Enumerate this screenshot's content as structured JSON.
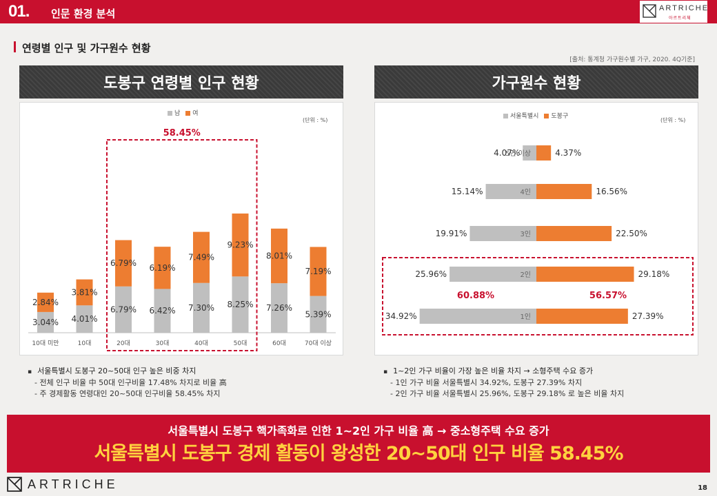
{
  "header": {
    "section_number": "01.",
    "section_title": "인문 환경 분석",
    "brand_name": "ARTRICHE",
    "brand_sub": "아르트리체"
  },
  "subheading": "연령별 인구 및 가구원수 현황",
  "source": "[출처: 통계청 가구원수별 가구, 2020. 4Q기준]",
  "left_panel": {
    "title": "도봉구 연령별 인구 현황",
    "unit": "(단위 : %)",
    "highlight_total": "58.45%",
    "bullet_lead": "서울특별시 도봉구  20~50대 인구 높은 비중 차지",
    "bullet_sub1": "- 전체 인구 비율 中 50대 인구비율 17.48% 차지로 비율 高",
    "bullet_sub2": "- 주 경제활동 연령대인 20~50대 인구비율 58.45% 차지"
  },
  "right_panel": {
    "title": "가구원수 현황",
    "unit": "(단위 : %)",
    "highlight_left": "60.88%",
    "highlight_right": "56.57%",
    "bullet_lead": "1~2인 가구 비율이 가장 높은 비율 차지 → 소형주택 수요 증가",
    "bullet_sub1": "- 1인 가구 비율 서울특별시 34.92%, 도봉구 27.39% 차지",
    "bullet_sub2": "- 2인 가구 비율 서울특별시 25.96%, 도봉구 29.18% 로 높은 비율 차지"
  },
  "banner": {
    "line1": "서울특별시 도봉구 핵가족화로 인한 1~2인 가구 비율 高 →  중소형주택 수요 증가",
    "line2": "서울특별시 도봉구 경제 활동이 왕성한 20~50대 인구 비율 58.45%"
  },
  "footer": {
    "brand_name": "ARTRICHE",
    "page_number": "18"
  },
  "colors": {
    "accent_red": "#c8102e",
    "male_gray": "#bfbfbf",
    "female_orange": "#ed7d31",
    "banner_yellow": "#ffd23f"
  },
  "chart_data": [
    {
      "type": "bar",
      "stacked": true,
      "title": "도봉구 연령별 인구 현황",
      "categories": [
        "10대 미만",
        "10대",
        "20대",
        "30대",
        "40대",
        "50대",
        "60대",
        "70대 이상"
      ],
      "series": [
        {
          "name": "남",
          "color": "#bfbfbf",
          "values": [
            3.04,
            4.01,
            6.79,
            6.42,
            7.3,
            8.25,
            7.26,
            5.39
          ]
        },
        {
          "name": "여",
          "color": "#ed7d31",
          "values": [
            2.84,
            3.81,
            6.79,
            6.19,
            7.49,
            9.23,
            8.01,
            7.19
          ]
        }
      ],
      "labels_male": [
        "3.04%",
        "4.01%",
        "6.79%",
        "6.42%",
        "7.30%",
        "8.25%",
        "7.26%",
        "5.39%"
      ],
      "labels_female": [
        "2.84%",
        "3.81%",
        "6.79%",
        "6.19%",
        "7.49%",
        "9.23%",
        "8.01%",
        "7.19%"
      ],
      "highlight_range": [
        "20대",
        "50대"
      ],
      "legend": "top-center",
      "grid": false
    },
    {
      "type": "bar",
      "orientation": "horizontal-diverging",
      "title": "가구원수 현황",
      "categories": [
        "5인 이상",
        "4인",
        "3인",
        "2인",
        "1인"
      ],
      "series": [
        {
          "name": "서울특별시",
          "color": "#bfbfbf",
          "values": [
            4.07,
            15.14,
            19.91,
            25.96,
            34.92
          ]
        },
        {
          "name": "도봉구",
          "color": "#ed7d31",
          "values": [
            4.37,
            16.56,
            22.5,
            29.18,
            27.39
          ]
        }
      ],
      "labels_seoul": [
        "4.07%",
        "15.14%",
        "19.91%",
        "25.96%",
        "34.92%"
      ],
      "labels_dobong": [
        "4.37%",
        "16.56%",
        "22.50%",
        "29.18%",
        "27.39%"
      ],
      "highlight_range": [
        "2인",
        "1인"
      ],
      "legend": "top-center",
      "grid": false
    }
  ]
}
